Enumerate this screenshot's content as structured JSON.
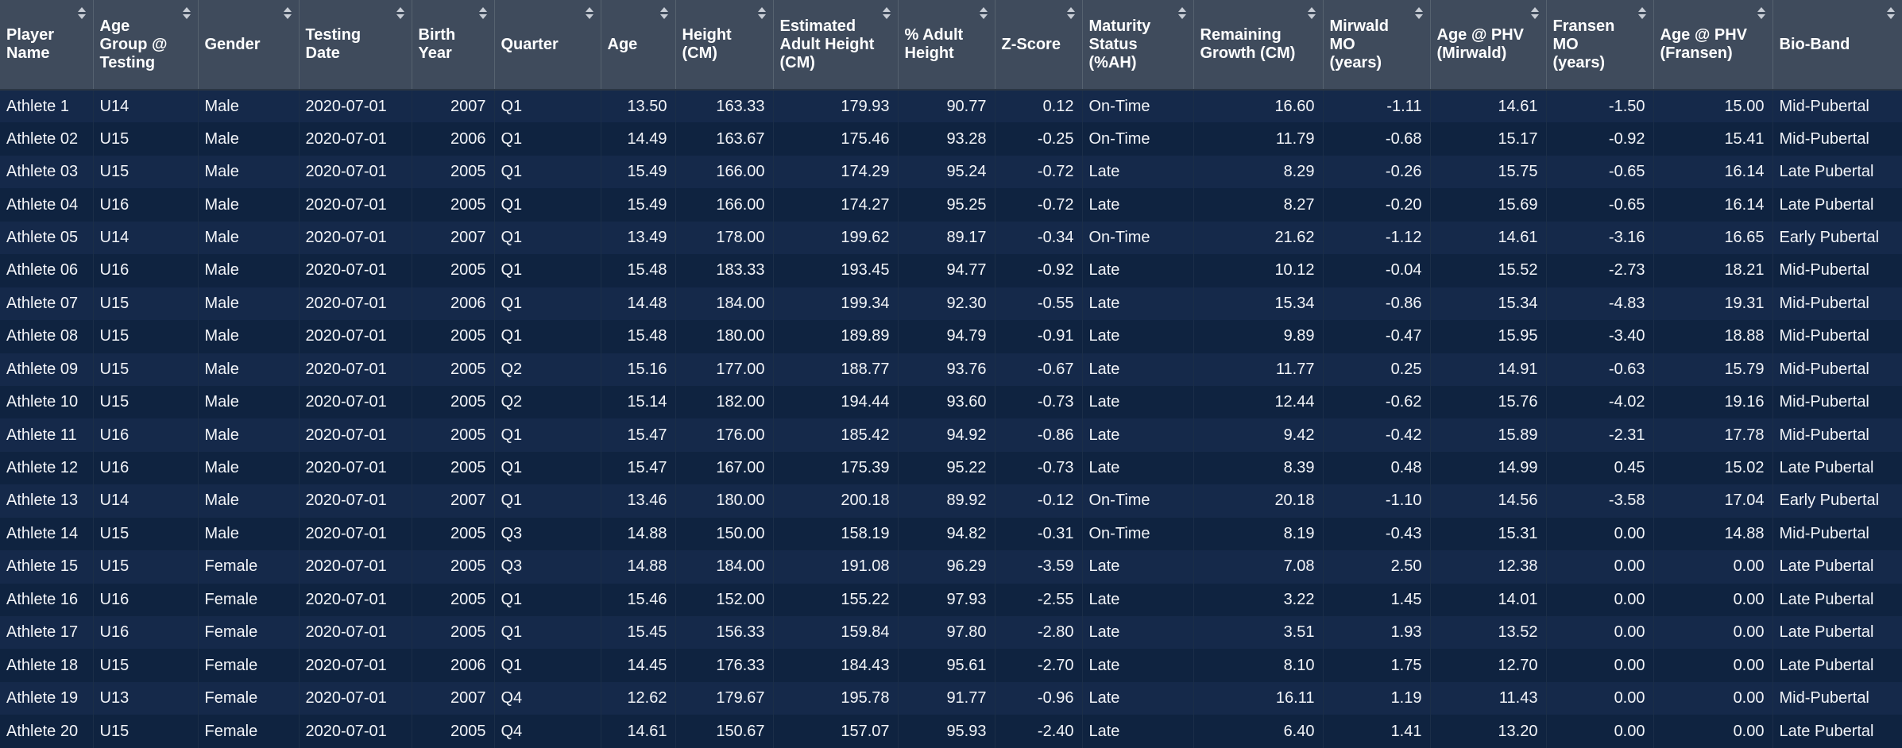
{
  "columns": [
    {
      "key": "player",
      "label": "Player Name",
      "align": "txt",
      "width": 117
    },
    {
      "key": "age_group",
      "label": "Age Group @ Testing",
      "align": "txt",
      "width": 132
    },
    {
      "key": "gender",
      "label": "Gender",
      "align": "txt",
      "width": 127
    },
    {
      "key": "testing_date",
      "label": "Testing Date",
      "align": "txt",
      "width": 142
    },
    {
      "key": "birth_year",
      "label": "Birth Year",
      "align": "num",
      "width": 104
    },
    {
      "key": "quarter",
      "label": "Quarter",
      "align": "txt",
      "width": 134
    },
    {
      "key": "age",
      "label": "Age",
      "align": "num",
      "width": 94
    },
    {
      "key": "height",
      "label": "Height (CM)",
      "align": "num",
      "width": 123
    },
    {
      "key": "est_adult_height",
      "label": "Estimated Adult Height (CM)",
      "align": "num",
      "width": 157
    },
    {
      "key": "pct_adult_height",
      "label": "% Adult Height",
      "align": "num",
      "width": 122
    },
    {
      "key": "z_score",
      "label": "Z-Score",
      "align": "num",
      "width": 110
    },
    {
      "key": "maturity_status",
      "label": "Maturity Status (%AH)",
      "align": "txt",
      "width": 140
    },
    {
      "key": "remaining_growth",
      "label": "Remaining Growth (CM)",
      "align": "num",
      "width": 163
    },
    {
      "key": "mirwald_mo",
      "label": "Mirwald MO (years)",
      "align": "num",
      "width": 135
    },
    {
      "key": "age_phv_mirwald",
      "label": "Age @ PHV (Mirwald)",
      "align": "num",
      "width": 146
    },
    {
      "key": "fransen_mo",
      "label": "Fransen MO (years)",
      "align": "num",
      "width": 135
    },
    {
      "key": "age_phv_fransen",
      "label": "Age @ PHV (Fransen)",
      "align": "num",
      "width": 150
    },
    {
      "key": "bio_band",
      "label": "Bio-Band",
      "align": "txt",
      "width": 163
    }
  ],
  "rows": [
    [
      "Athlete 1",
      "U14",
      "Male",
      "2020-07-01",
      "2007",
      "Q1",
      "13.50",
      "163.33",
      "179.93",
      "90.77",
      "0.12",
      "On-Time",
      "16.60",
      "-1.11",
      "14.61",
      "-1.50",
      "15.00",
      "Mid-Pubertal"
    ],
    [
      "Athlete 02",
      "U15",
      "Male",
      "2020-07-01",
      "2006",
      "Q1",
      "14.49",
      "163.67",
      "175.46",
      "93.28",
      "-0.25",
      "On-Time",
      "11.79",
      "-0.68",
      "15.17",
      "-0.92",
      "15.41",
      "Mid-Pubertal"
    ],
    [
      "Athlete 03",
      "U15",
      "Male",
      "2020-07-01",
      "2005",
      "Q1",
      "15.49",
      "166.00",
      "174.29",
      "95.24",
      "-0.72",
      "Late",
      "8.29",
      "-0.26",
      "15.75",
      "-0.65",
      "16.14",
      "Late Pubertal"
    ],
    [
      "Athlete 04",
      "U16",
      "Male",
      "2020-07-01",
      "2005",
      "Q1",
      "15.49",
      "166.00",
      "174.27",
      "95.25",
      "-0.72",
      "Late",
      "8.27",
      "-0.20",
      "15.69",
      "-0.65",
      "16.14",
      "Late Pubertal"
    ],
    [
      "Athlete 05",
      "U14",
      "Male",
      "2020-07-01",
      "2007",
      "Q1",
      "13.49",
      "178.00",
      "199.62",
      "89.17",
      "-0.34",
      "On-Time",
      "21.62",
      "-1.12",
      "14.61",
      "-3.16",
      "16.65",
      "Early Pubertal"
    ],
    [
      "Athlete 06",
      "U16",
      "Male",
      "2020-07-01",
      "2005",
      "Q1",
      "15.48",
      "183.33",
      "193.45",
      "94.77",
      "-0.92",
      "Late",
      "10.12",
      "-0.04",
      "15.52",
      "-2.73",
      "18.21",
      "Mid-Pubertal"
    ],
    [
      "Athlete 07",
      "U15",
      "Male",
      "2020-07-01",
      "2006",
      "Q1",
      "14.48",
      "184.00",
      "199.34",
      "92.30",
      "-0.55",
      "Late",
      "15.34",
      "-0.86",
      "15.34",
      "-4.83",
      "19.31",
      "Mid-Pubertal"
    ],
    [
      "Athlete 08",
      "U15",
      "Male",
      "2020-07-01",
      "2005",
      "Q1",
      "15.48",
      "180.00",
      "189.89",
      "94.79",
      "-0.91",
      "Late",
      "9.89",
      "-0.47",
      "15.95",
      "-3.40",
      "18.88",
      "Mid-Pubertal"
    ],
    [
      "Athlete 09",
      "U15",
      "Male",
      "2020-07-01",
      "2005",
      "Q2",
      "15.16",
      "177.00",
      "188.77",
      "93.76",
      "-0.67",
      "Late",
      "11.77",
      "0.25",
      "14.91",
      "-0.63",
      "15.79",
      "Mid-Pubertal"
    ],
    [
      "Athlete 10",
      "U15",
      "Male",
      "2020-07-01",
      "2005",
      "Q2",
      "15.14",
      "182.00",
      "194.44",
      "93.60",
      "-0.73",
      "Late",
      "12.44",
      "-0.62",
      "15.76",
      "-4.02",
      "19.16",
      "Mid-Pubertal"
    ],
    [
      "Athlete 11",
      "U16",
      "Male",
      "2020-07-01",
      "2005",
      "Q1",
      "15.47",
      "176.00",
      "185.42",
      "94.92",
      "-0.86",
      "Late",
      "9.42",
      "-0.42",
      "15.89",
      "-2.31",
      "17.78",
      "Mid-Pubertal"
    ],
    [
      "Athlete 12",
      "U16",
      "Male",
      "2020-07-01",
      "2005",
      "Q1",
      "15.47",
      "167.00",
      "175.39",
      "95.22",
      "-0.73",
      "Late",
      "8.39",
      "0.48",
      "14.99",
      "0.45",
      "15.02",
      "Late Pubertal"
    ],
    [
      "Athlete 13",
      "U14",
      "Male",
      "2020-07-01",
      "2007",
      "Q1",
      "13.46",
      "180.00",
      "200.18",
      "89.92",
      "-0.12",
      "On-Time",
      "20.18",
      "-1.10",
      "14.56",
      "-3.58",
      "17.04",
      "Early Pubertal"
    ],
    [
      "Athlete 14",
      "U15",
      "Male",
      "2020-07-01",
      "2005",
      "Q3",
      "14.88",
      "150.00",
      "158.19",
      "94.82",
      "-0.31",
      "On-Time",
      "8.19",
      "-0.43",
      "15.31",
      "0.00",
      "14.88",
      "Mid-Pubertal"
    ],
    [
      "Athlete 15",
      "U15",
      "Female",
      "2020-07-01",
      "2005",
      "Q3",
      "14.88",
      "184.00",
      "191.08",
      "96.29",
      "-3.59",
      "Late",
      "7.08",
      "2.50",
      "12.38",
      "0.00",
      "0.00",
      "Late Pubertal"
    ],
    [
      "Athlete 16",
      "U16",
      "Female",
      "2020-07-01",
      "2005",
      "Q1",
      "15.46",
      "152.00",
      "155.22",
      "97.93",
      "-2.55",
      "Late",
      "3.22",
      "1.45",
      "14.01",
      "0.00",
      "0.00",
      "Late Pubertal"
    ],
    [
      "Athlete 17",
      "U16",
      "Female",
      "2020-07-01",
      "2005",
      "Q1",
      "15.45",
      "156.33",
      "159.84",
      "97.80",
      "-2.80",
      "Late",
      "3.51",
      "1.93",
      "13.52",
      "0.00",
      "0.00",
      "Late Pubertal"
    ],
    [
      "Athlete 18",
      "U15",
      "Female",
      "2020-07-01",
      "2006",
      "Q1",
      "14.45",
      "176.33",
      "184.43",
      "95.61",
      "-2.70",
      "Late",
      "8.10",
      "1.75",
      "12.70",
      "0.00",
      "0.00",
      "Late Pubertal"
    ],
    [
      "Athlete 19",
      "U13",
      "Female",
      "2020-07-01",
      "2007",
      "Q4",
      "12.62",
      "179.67",
      "195.78",
      "91.77",
      "-0.96",
      "Late",
      "16.11",
      "1.19",
      "11.43",
      "0.00",
      "0.00",
      "Mid-Pubertal"
    ],
    [
      "Athlete 20",
      "U15",
      "Female",
      "2020-07-01",
      "2005",
      "Q4",
      "14.61",
      "150.67",
      "157.07",
      "95.93",
      "-2.40",
      "Late",
      "6.40",
      "1.41",
      "13.20",
      "0.00",
      "0.00",
      "Late Pubertal"
    ]
  ],
  "icons": {
    "sort": "sort-arrows-icon"
  },
  "colors": {
    "header_bg": "#3f4b5c",
    "row_odd": "#15294a",
    "row_even": "#0f2340",
    "text": "#f2f4f8"
  }
}
